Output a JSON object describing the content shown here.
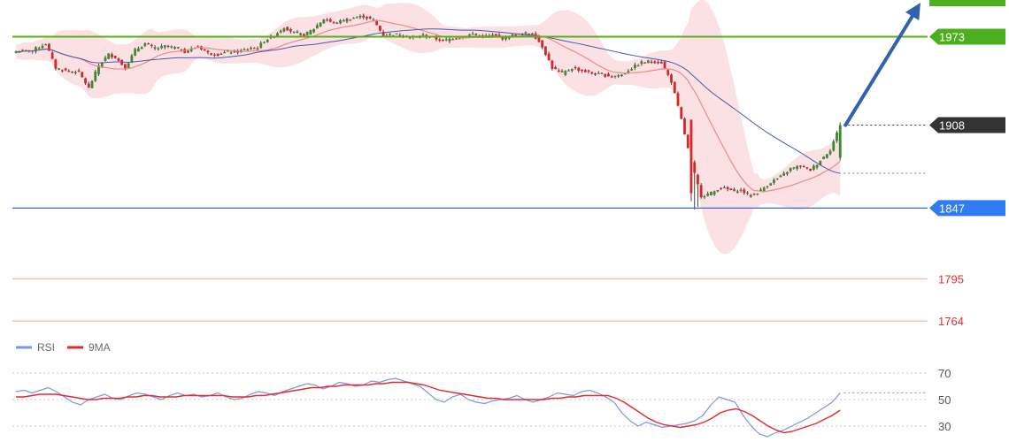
{
  "chart_data": {
    "type": "candlestick",
    "price_axis": {
      "ylim": [
        1740,
        2000
      ]
    },
    "levels": [
      {
        "label": "1973",
        "value": 1973,
        "role": "resistance"
      },
      {
        "label": "1908",
        "value": 1908,
        "role": "current"
      },
      {
        "label": "1847",
        "value": 1847,
        "role": "support"
      },
      {
        "label": "1795",
        "value": 1795,
        "role": "support"
      },
      {
        "label": "1764",
        "value": 1764,
        "role": "support"
      }
    ],
    "forecast": {
      "direction": "up",
      "from": 1908,
      "to": 1998
    },
    "close_path": [
      [
        0,
        1962
      ],
      [
        5,
        1963
      ],
      [
        9,
        1968
      ],
      [
        12,
        1950
      ],
      [
        15,
        1948
      ],
      [
        19,
        1947
      ],
      [
        22,
        1935
      ],
      [
        25,
        1952
      ],
      [
        28,
        1960
      ],
      [
        30,
        1958
      ],
      [
        33,
        1950
      ],
      [
        36,
        1963
      ],
      [
        39,
        1968
      ],
      [
        42,
        1964
      ],
      [
        45,
        1966
      ],
      [
        48,
        1965
      ],
      [
        51,
        1962
      ],
      [
        55,
        1966
      ],
      [
        58,
        1961
      ],
      [
        61,
        1960
      ],
      [
        64,
        1962
      ],
      [
        67,
        1962
      ],
      [
        70,
        1964
      ],
      [
        73,
        1965
      ],
      [
        75,
        1970
      ],
      [
        78,
        1974
      ],
      [
        81,
        1980
      ],
      [
        84,
        1976
      ],
      [
        87,
        1974
      ],
      [
        90,
        1979
      ],
      [
        93,
        1986
      ],
      [
        96,
        1983
      ],
      [
        99,
        1985
      ],
      [
        102,
        1987
      ],
      [
        105,
        1988
      ],
      [
        108,
        1985
      ],
      [
        111,
        1974
      ],
      [
        114,
        1975
      ],
      [
        117,
        1974
      ],
      [
        120,
        1972
      ],
      [
        123,
        1974
      ],
      [
        126,
        1972
      ],
      [
        129,
        1970
      ],
      [
        132,
        1972
      ],
      [
        135,
        1973
      ],
      [
        138,
        1975
      ],
      [
        141,
        1973
      ],
      [
        144,
        1974
      ],
      [
        147,
        1972
      ],
      [
        150,
        1974
      ],
      [
        153,
        1975
      ],
      [
        156,
        1976
      ],
      [
        159,
        1966
      ],
      [
        162,
        1950
      ],
      [
        165,
        1946
      ],
      [
        168,
        1950
      ],
      [
        171,
        1948
      ],
      [
        174,
        1946
      ],
      [
        177,
        1945
      ],
      [
        180,
        1944
      ],
      [
        183,
        1945
      ],
      [
        186,
        1950
      ],
      [
        189,
        1954
      ],
      [
        192,
        1955
      ],
      [
        195,
        1954
      ],
      [
        198,
        1940
      ],
      [
        201,
        1912
      ],
      [
        204,
        1880
      ],
      [
        207,
        1856
      ],
      [
        210,
        1858
      ],
      [
        213,
        1862
      ],
      [
        216,
        1860
      ],
      [
        219,
        1860
      ],
      [
        222,
        1856
      ],
      [
        225,
        1860
      ],
      [
        228,
        1866
      ],
      [
        231,
        1870
      ],
      [
        234,
        1876
      ],
      [
        237,
        1878
      ],
      [
        240,
        1875
      ],
      [
        243,
        1882
      ],
      [
        246,
        1890
      ],
      [
        249,
        1908
      ]
    ],
    "indicators": {
      "rsi": {
        "name": "RSI",
        "ylim": [
          20,
          80
        ],
        "ticks": [
          70,
          50,
          30
        ],
        "values": [
          56,
          57,
          55,
          57,
          59,
          56,
          52,
          48,
          46,
          50,
          52,
          54,
          51,
          50,
          53,
          55,
          54,
          52,
          50,
          53,
          55,
          53,
          54,
          52,
          53,
          55,
          52,
          50,
          51,
          54,
          56,
          55,
          53,
          56,
          58,
          60,
          62,
          61,
          58,
          60,
          63,
          62,
          60,
          61,
          64,
          63,
          65,
          66,
          64,
          62,
          60,
          55,
          50,
          48,
          52,
          54,
          50,
          48,
          47,
          49,
          50,
          51,
          53,
          50,
          48,
          50,
          52,
          55,
          54,
          53,
          56,
          57,
          55,
          52,
          48,
          40,
          34,
          30,
          33,
          31,
          29,
          30,
          31,
          32,
          34,
          38,
          46,
          52,
          50,
          48,
          38,
          30,
          24,
          22,
          25,
          27,
          30,
          33,
          36,
          40,
          44,
          48,
          55
        ]
      },
      "ma9": {
        "name": "9MA",
        "values": [
          52,
          52,
          53,
          54,
          54,
          54,
          53,
          52,
          51,
          50,
          50,
          51,
          51,
          51,
          52,
          52,
          53,
          53,
          52,
          52,
          52,
          53,
          53,
          53,
          53,
          53,
          53,
          52,
          52,
          52,
          53,
          53,
          54,
          55,
          56,
          57,
          58,
          59,
          59,
          60,
          60,
          61,
          61,
          61,
          61,
          62,
          62,
          63,
          63,
          63,
          62,
          61,
          59,
          57,
          56,
          55,
          54,
          53,
          52,
          51,
          51,
          50,
          50,
          50,
          50,
          50,
          50,
          51,
          51,
          52,
          52,
          53,
          53,
          53,
          53,
          51,
          48,
          44,
          40,
          36,
          33,
          31,
          30,
          29,
          30,
          31,
          33,
          36,
          40,
          42,
          43,
          41,
          38,
          34,
          30,
          27,
          25,
          26,
          28,
          30,
          32,
          35,
          38,
          42
        ]
      }
    }
  }
}
